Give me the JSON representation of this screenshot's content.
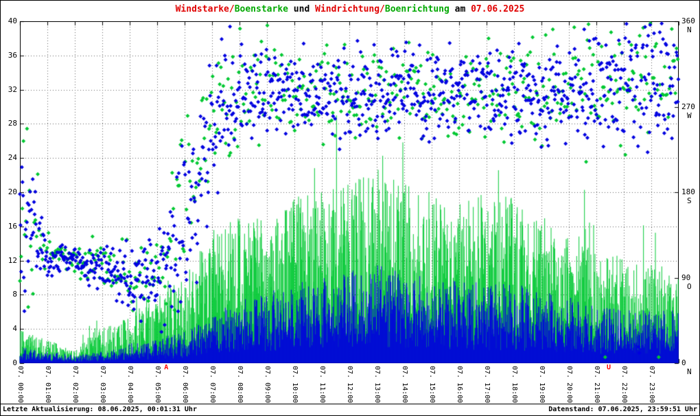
{
  "title": {
    "segments": [
      {
        "text": "Windstarke/",
        "color": "#e00000"
      },
      {
        "text": "Boenstarke",
        "color": "#00a800"
      },
      {
        "text": " und ",
        "color": "#000000"
      },
      {
        "text": "Windrichtung/",
        "color": "#e00000"
      },
      {
        "text": "Boenrichtung",
        "color": "#00a800"
      },
      {
        "text": " am ",
        "color": "#000000"
      },
      {
        "text": "07.06.2025",
        "color": "#e00000"
      }
    ]
  },
  "axes": {
    "left": {
      "range": [
        0,
        40
      ],
      "tick_step": 4,
      "ticks": [
        0,
        4,
        8,
        12,
        16,
        20,
        24,
        28,
        32,
        36,
        40
      ]
    },
    "right": {
      "range": [
        0,
        360
      ],
      "ticks": [
        {
          "deg": 360,
          "letter": "N"
        },
        {
          "deg": 270,
          "letter": "W"
        },
        {
          "deg": 180,
          "letter": "S"
        },
        {
          "deg": 90,
          "letter": "O"
        },
        {
          "deg": 0,
          "letter": "N"
        }
      ]
    },
    "x": {
      "labels": [
        "07. 00:00",
        "07. 01:00",
        "07. 02:00",
        "07. 03:00",
        "07. 04:00",
        "07. 05:00",
        "07. 06:00",
        "07. 07:00",
        "07. 08:00",
        "07. 09:00",
        "07. 10:00",
        "07. 11:00",
        "07. 12:00",
        "07. 13:00",
        "07. 14:00",
        "07. 15:00",
        "07. 16:00",
        "07. 17:00",
        "07. 18:00",
        "07. 19:00",
        "07. 20:00",
        "07. 21:00",
        "07. 22:00",
        "07. 23:00"
      ]
    }
  },
  "sun_markers": [
    {
      "label": "A",
      "hour": 5.33,
      "color": "#ff0000",
      "name": "sunrise-marker"
    },
    {
      "label": "U",
      "hour": 21.45,
      "color": "#ff0000",
      "name": "sunset-marker"
    }
  ],
  "footer": {
    "left": "Letzte Aktualisierung: 08.06.2025, 00:01:31 Uhr",
    "right": "Datenstand: 07.06.2025, 23:59:51 Uhr"
  },
  "colors": {
    "wind": "#0000e0",
    "gust": "#00c832",
    "wind_dir": "#0000e0",
    "gust_dir": "#00c832",
    "grid": "#606060",
    "frame": "#000000",
    "background": "#ffffff"
  },
  "chart_data": {
    "type": "mixed",
    "date": "07.06.2025",
    "x_unit": "hour",
    "x_range": [
      0,
      24
    ],
    "left_axis": {
      "label": "Windstarke / Boenstarke",
      "range": [
        0,
        40
      ]
    },
    "right_axis": {
      "label": "Windrichtung / Boenrichtung (Grad)",
      "range": [
        0,
        360
      ]
    },
    "grid": "dotted, hourly vertical, every 4 units horizontal",
    "sampling_minutes": 1,
    "series": [
      {
        "name": "Windstarke",
        "style": "impulses",
        "axis": "left",
        "hourly_mean": [
          1.2,
          1.0,
          0.6,
          0.9,
          1.5,
          1.8,
          2.5,
          3.5,
          5.0,
          5.5,
          6.0,
          6.5,
          7.0,
          7.5,
          7.0,
          6.5,
          6.5,
          6.0,
          6.0,
          5.5,
          5.0,
          4.5,
          4.0,
          4.0
        ]
      },
      {
        "name": "Boenstarke",
        "style": "impulses",
        "axis": "left",
        "hourly_mean": [
          2.5,
          1.8,
          0.9,
          3.0,
          3.7,
          5.0,
          6.5,
          10.0,
          11.0,
          11.0,
          12.5,
          13.0,
          13.5,
          15.0,
          13.5,
          13.0,
          12.5,
          13.0,
          12.5,
          11.0,
          10.5,
          8.5,
          8.0,
          7.5
        ]
      },
      {
        "name": "Windrichtung",
        "style": "points-diamond",
        "axis": "right",
        "hourly_mean_deg": [
          150,
          112,
          110,
          100,
          88,
          92,
          140,
          235,
          282,
          290,
          284,
          281,
          285,
          288,
          284,
          281,
          284,
          288,
          285,
          281,
          286,
          293,
          299,
          306
        ],
        "hourly_spread_deg": [
          95,
          16,
          13,
          22,
          30,
          42,
          75,
          65,
          46,
          40,
          40,
          40,
          42,
          44,
          42,
          40,
          40,
          42,
          42,
          44,
          46,
          52,
          56,
          60
        ]
      },
      {
        "name": "Boenrichtung",
        "style": "points-diamond",
        "axis": "right",
        "hourly_mean_deg": [
          154,
          116,
          114,
          104,
          92,
          96,
          144,
          239,
          286,
          294,
          288,
          285,
          289,
          292,
          288,
          285,
          288,
          292,
          289,
          285,
          290,
          297,
          303,
          310
        ],
        "hourly_spread_deg": [
          100,
          18,
          15,
          24,
          32,
          44,
          78,
          68,
          48,
          42,
          42,
          42,
          44,
          46,
          44,
          42,
          42,
          44,
          44,
          46,
          48,
          54,
          58,
          62
        ]
      }
    ]
  }
}
